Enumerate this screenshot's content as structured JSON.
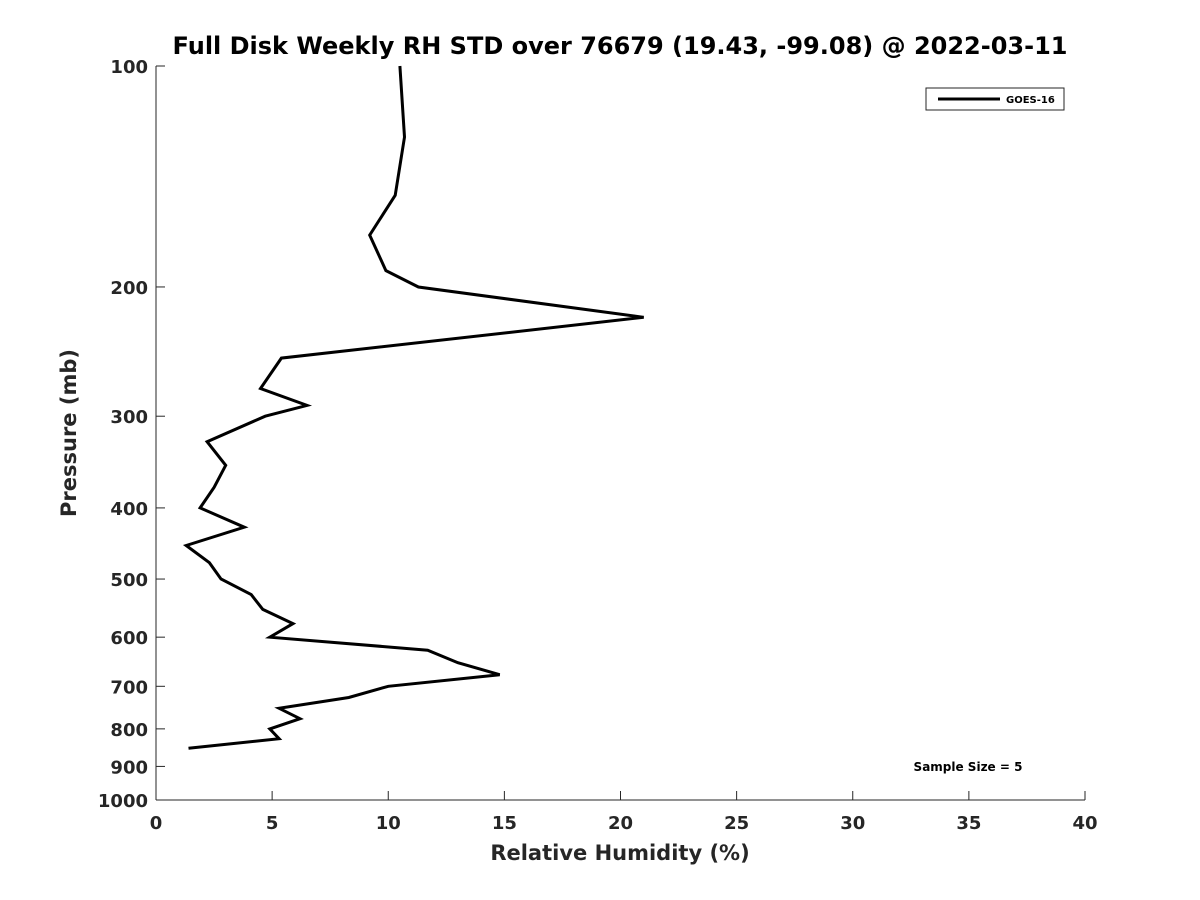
{
  "chart_data": {
    "type": "line",
    "title": "Full Disk Weekly RH STD over 76679 (19.43, -99.08) @ 2022-03-11",
    "xlabel": "Relative Humidity (%)",
    "ylabel": "Pressure (mb)",
    "xlim": [
      0,
      40
    ],
    "ylim": [
      100,
      1000
    ],
    "yscale": "log",
    "y_reversed": true,
    "grid": false,
    "legend_position": "top-right",
    "x_ticks": [
      0,
      5,
      10,
      15,
      20,
      25,
      30,
      35,
      40
    ],
    "x_tick_labels": [
      "0",
      "5",
      "10",
      "15",
      "20",
      "25",
      "30",
      "35",
      "40"
    ],
    "y_ticks": [
      100,
      200,
      300,
      400,
      500,
      600,
      700,
      800,
      900,
      1000
    ],
    "y_tick_labels": [
      "100",
      "200",
      "300",
      "400",
      "500",
      "600",
      "700",
      "800",
      "900",
      "1000"
    ],
    "series": [
      {
        "name": "GOES-16",
        "color": "#000000",
        "x": [
          10.5,
          10.7,
          10.3,
          9.2,
          9.9,
          11.3,
          21.0,
          5.4,
          4.5,
          6.5,
          4.7,
          2.2,
          3.0,
          2.5,
          1.9,
          3.8,
          1.3,
          2.3,
          2.8,
          4.1,
          4.6,
          5.9,
          4.9,
          11.7,
          13.0,
          14.8,
          10.0,
          8.3,
          5.3,
          6.2,
          4.9,
          5.3,
          1.4
        ],
        "y": [
          100,
          125,
          150,
          170,
          190,
          200,
          220,
          250,
          275,
          290,
          300,
          325,
          350,
          375,
          400,
          425,
          450,
          475,
          500,
          525,
          550,
          575,
          600,
          625,
          650,
          675,
          700,
          725,
          750,
          775,
          800,
          825,
          850
        ]
      }
    ],
    "annotations": [
      {
        "text": "Sample Size = 5",
        "position": "bottom-right"
      }
    ]
  }
}
